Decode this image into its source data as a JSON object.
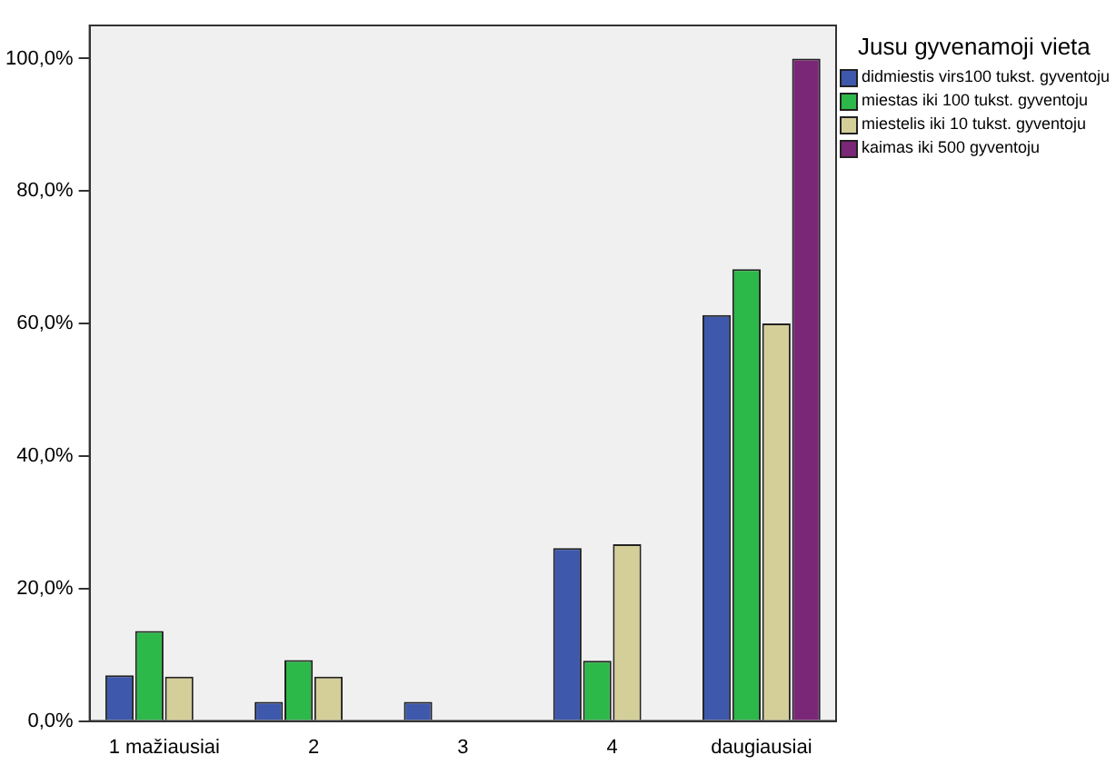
{
  "chart_data": {
    "type": "bar",
    "categories": [
      "1 mažiausiai",
      "2",
      "3",
      "4",
      "daugiausiai"
    ],
    "legend_title": "Jusu gyvenamoji vieta",
    "legend": "top right",
    "grid": false,
    "ylim": [
      0,
      105
    ],
    "yticks": [
      {
        "value": 0,
        "label": "0,0%"
      },
      {
        "value": 20,
        "label": "20,0%"
      },
      {
        "value": 40,
        "label": "40,0%"
      },
      {
        "value": 60,
        "label": "60,0%"
      },
      {
        "value": 80,
        "label": "80,0%"
      },
      {
        "value": 100,
        "label": "100,0%"
      }
    ],
    "series": [
      {
        "name": "didmiestis virs100 tukst. gyventoju",
        "color": "#3e58ac",
        "values": [
          6.9,
          2.9,
          2.9,
          26.1,
          61.3
        ]
      },
      {
        "name": "miestas iki 100 tukst. gyventoju",
        "color": "#2db84a",
        "values": [
          13.6,
          9.2,
          0,
          9.1,
          68.2
        ]
      },
      {
        "name": "miestelis iki 10 tukst. gyventoju",
        "color": "#d4cf99",
        "values": [
          6.7,
          6.7,
          0,
          26.7,
          60.0
        ]
      },
      {
        "name": "kaimas iki 500 gyventoju",
        "color": "#7b2777",
        "values": [
          0,
          0,
          0,
          0,
          100
        ]
      }
    ]
  }
}
